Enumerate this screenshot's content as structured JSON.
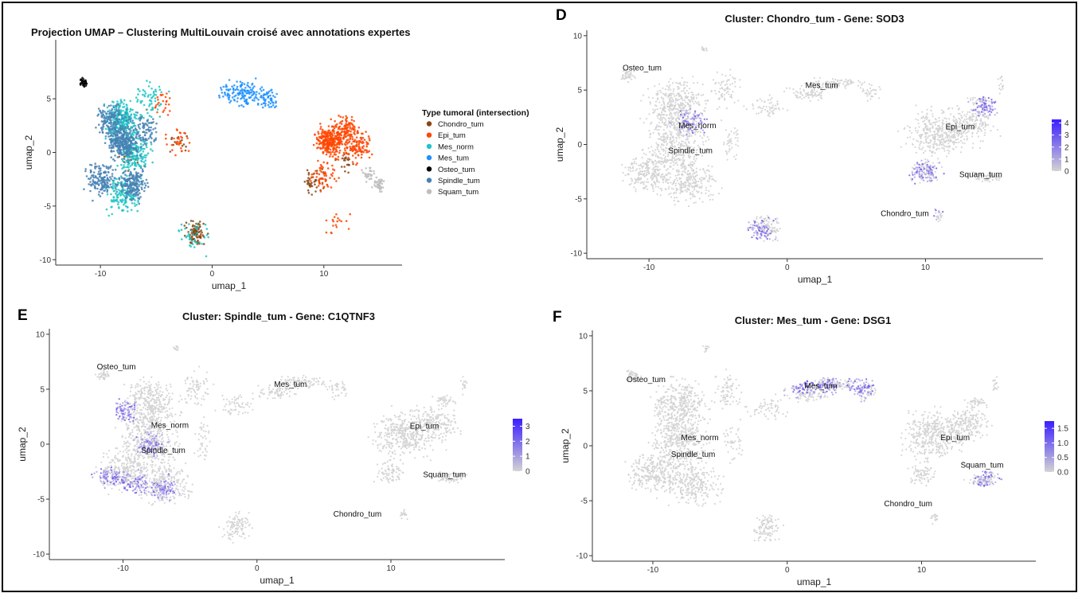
{
  "chart_data": [
    {
      "panel_label": "",
      "type": "scatter",
      "title": "Projection UMAP – Clustering MultiLouvain croisé avec annotations expertes",
      "xlabel": "umap_1",
      "ylabel": "umap_2",
      "xlim": [
        -14,
        17
      ],
      "ylim": [
        -10.5,
        10.5
      ],
      "xticks": [
        "-10",
        "0",
        "10"
      ],
      "xtick_values": [
        -10,
        0,
        10
      ],
      "yticks": [
        "-10",
        "-5",
        "0",
        "5"
      ],
      "ytick_values": [
        -10,
        -5,
        0,
        5
      ],
      "legend_title": "Type tumoral (intersection)",
      "legend_position": "right",
      "grid": false,
      "series": [
        {
          "name": "Chondro_tum",
          "color": "#8B4513",
          "centers": [
            [
              -1.5,
              -7.5
            ],
            [
              -7.5,
              -0.5
            ],
            [
              9,
              -2.5
            ],
            [
              12,
              -1
            ],
            [
              -3,
              1
            ]
          ]
        },
        {
          "name": "Epi_tum",
          "color": "#FF4500",
          "centers": [
            [
              10.5,
              1
            ],
            [
              12,
              2
            ],
            [
              13,
              0.5
            ],
            [
              10,
              -2
            ],
            [
              -4.5,
              4.5
            ],
            [
              -3,
              1
            ],
            [
              11,
              -6.5
            ]
          ]
        },
        {
          "name": "Mes_norm",
          "color": "#20C5C5",
          "centers": [
            [
              -8,
              3
            ],
            [
              -7,
              0
            ],
            [
              -8,
              -4
            ],
            [
              -5.5,
              5
            ],
            [
              -1.5,
              -8
            ]
          ]
        },
        {
          "name": "Mes_tum",
          "color": "#1E90FF",
          "centers": [
            [
              3,
              5.5
            ],
            [
              5,
              5
            ],
            [
              1.5,
              5.8
            ]
          ]
        },
        {
          "name": "Osteo_tum",
          "color": "#000000",
          "centers": [
            [
              -11.5,
              6.5
            ]
          ]
        },
        {
          "name": "Spindle_tum",
          "color": "#4682B4",
          "centers": [
            [
              -8,
              1
            ],
            [
              -10,
              -2.5
            ],
            [
              -9,
              3
            ],
            [
              -7,
              -3
            ],
            [
              -6,
              2
            ]
          ]
        },
        {
          "name": "Squam_tum",
          "color": "#BEBEBE",
          "centers": [
            [
              15,
              -3
            ],
            [
              14,
              -2
            ]
          ]
        }
      ]
    },
    {
      "panel_label": "D",
      "type": "scatter",
      "title": "Cluster: Chondro_tum - Gene: SOD3",
      "xlabel": "umap_1",
      "ylabel": "umap_2",
      "xlim": [
        -14.5,
        18.5
      ],
      "ylim": [
        -10.5,
        10.5
      ],
      "xticks": [
        "-10",
        "0",
        "10"
      ],
      "xtick_values": [
        -10,
        0,
        10
      ],
      "yticks": [
        "-10",
        "-5",
        "0",
        "5",
        "10"
      ],
      "ytick_values": [
        -10,
        -5,
        0,
        5,
        10
      ],
      "colorbar_ticks": [
        "4",
        "3",
        "2",
        "1",
        "0"
      ],
      "colorbar_values": [
        4,
        3,
        2,
        1,
        0
      ],
      "colorbar_max": 4.3,
      "labels": [
        {
          "text": "Osteo_tum",
          "x": -10.5,
          "y": 6.8
        },
        {
          "text": "Mes_tum",
          "x": 2.5,
          "y": 5.2
        },
        {
          "text": "Mes_norm",
          "x": -6.5,
          "y": 1.5
        },
        {
          "text": "Spindle_tum",
          "x": -7,
          "y": -0.8
        },
        {
          "text": "Epi_tum",
          "x": 12.5,
          "y": 1.4
        },
        {
          "text": "Squam_tum",
          "x": 14,
          "y": -3
        },
        {
          "text": "Chondro_tum",
          "x": 8.5,
          "y": -6.6
        }
      ],
      "highlight_centers": [
        [
          10,
          -2.5
        ],
        [
          14.5,
          3.5
        ],
        [
          10,
          -6
        ],
        [
          -7,
          2
        ],
        [
          -2,
          -8
        ]
      ]
    },
    {
      "panel_label": "E",
      "type": "scatter",
      "title": "Cluster: Spindle_tum - Gene: C1QTNF3",
      "xlabel": "umap_1",
      "ylabel": "umap_2",
      "xlim": [
        -15.5,
        18.5
      ],
      "ylim": [
        -10.5,
        10.5
      ],
      "xticks": [
        "-10",
        "0",
        "10"
      ],
      "xtick_values": [
        -10,
        0,
        10
      ],
      "yticks": [
        "-10",
        "-5",
        "0",
        "5",
        "10"
      ],
      "ytick_values": [
        -10,
        -5,
        0,
        5,
        10
      ],
      "colorbar_ticks": [
        "3",
        "2",
        "1",
        "0"
      ],
      "colorbar_values": [
        3,
        2,
        1,
        0
      ],
      "colorbar_max": 3.5,
      "labels": [
        {
          "text": "Osteo_tum",
          "x": -10.5,
          "y": 6.8
        },
        {
          "text": "Mes_tum",
          "x": 2.5,
          "y": 5.2
        },
        {
          "text": "Mes_norm",
          "x": -6.5,
          "y": 1.5
        },
        {
          "text": "Spindle_tum",
          "x": -7,
          "y": -0.8
        },
        {
          "text": "Epi_tum",
          "x": 12.5,
          "y": 1.4
        },
        {
          "text": "Squam_tum",
          "x": 14,
          "y": -3
        },
        {
          "text": "Chondro_tum",
          "x": 7.5,
          "y": -6.6
        }
      ],
      "highlight_centers": [
        [
          -11,
          -3
        ],
        [
          -9,
          -3.5
        ],
        [
          -7,
          -4
        ],
        [
          -10,
          3
        ],
        [
          -8,
          0
        ]
      ]
    },
    {
      "panel_label": "F",
      "type": "scatter",
      "title": "Cluster: Mes_tum - Gene: DSG1",
      "xlabel": "umap_1",
      "ylabel": "umap_2",
      "xlim": [
        -14.5,
        18.5
      ],
      "ylim": [
        -10.5,
        10.5
      ],
      "xticks": [
        "-10",
        "0",
        "10"
      ],
      "xtick_values": [
        -10,
        0,
        10
      ],
      "yticks": [
        "-10",
        "-5",
        "0",
        "5",
        "10"
      ],
      "ytick_values": [
        -10,
        -5,
        0,
        5,
        10
      ],
      "colorbar_ticks": [
        "1.5",
        "1.0",
        "0.5",
        "0.0"
      ],
      "colorbar_values": [
        1.5,
        1.0,
        0.5,
        0.0
      ],
      "colorbar_max": 1.75,
      "labels": [
        {
          "text": "Osteo_tum",
          "x": -10.5,
          "y": 5.8
        },
        {
          "text": "Mes_tum",
          "x": 2.5,
          "y": 5.2
        },
        {
          "text": "Mes_norm",
          "x": -6.5,
          "y": 0.5
        },
        {
          "text": "Spindle_tum",
          "x": -7,
          "y": -1
        },
        {
          "text": "Epi_tum",
          "x": 12.5,
          "y": 0.5
        },
        {
          "text": "Squam_tum",
          "x": 14.5,
          "y": -2
        },
        {
          "text": "Chondro_tum",
          "x": 9,
          "y": -5.5
        }
      ],
      "highlight_centers": [
        [
          3,
          5.5
        ],
        [
          5.5,
          5.3
        ],
        [
          1,
          5.5
        ],
        [
          15,
          -3
        ]
      ]
    }
  ]
}
